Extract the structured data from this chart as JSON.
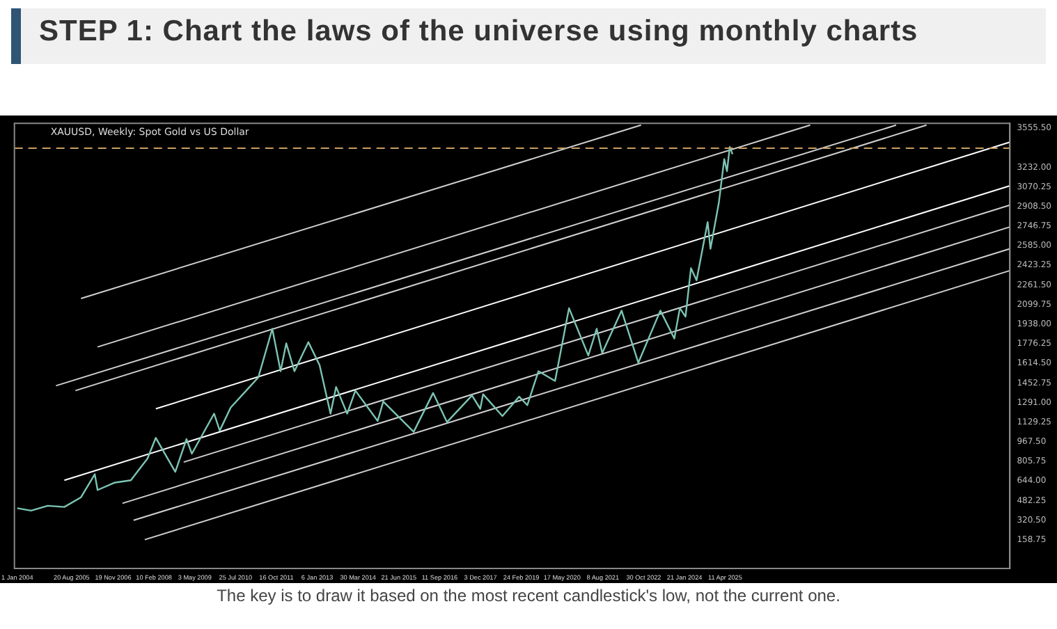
{
  "chart_data": {
    "type": "line",
    "title": "STEP 1: Chart the laws of the universe using monthly charts",
    "subtitle": "XAUUSD, Weekly: Spot Gold vs US Dollar",
    "annotations": [
      "The key is to draw it based on the most recent candlestick's low, not the current one."
    ],
    "xlim": [
      "2003-12-01",
      "2033-11-01"
    ],
    "xticks": [
      {
        "value": "2004-01-01",
        "label": "1 Jan 2004"
      },
      {
        "value": "2005-08-20",
        "label": "20 Aug 2005"
      },
      {
        "value": "2006-11-19",
        "label": "19 Nov 2006"
      },
      {
        "value": "2008-02-10",
        "label": "10 Feb 2008"
      },
      {
        "value": "2009-05-03",
        "label": "3 May 2009"
      },
      {
        "value": "2010-07-25",
        "label": "25 Jul 2010"
      },
      {
        "value": "2011-10-16",
        "label": "16 Oct 2011"
      },
      {
        "value": "2013-01-06",
        "label": "6 Jan 2013"
      },
      {
        "value": "2014-03-30",
        "label": "30 Mar 2014"
      },
      {
        "value": "2015-06-21",
        "label": "21 Jun 2015"
      },
      {
        "value": "2016-09-11",
        "label": "11 Sep 2016"
      },
      {
        "value": "2017-12-03",
        "label": "3 Dec 2017"
      },
      {
        "value": "2019-02-24",
        "label": "24 Feb 2019"
      },
      {
        "value": "2020-05-17",
        "label": "17 May 2020"
      },
      {
        "value": "2021-08-08",
        "label": "8 Aug 2021"
      },
      {
        "value": "2022-10-30",
        "label": "30 Oct 2022"
      },
      {
        "value": "2024-01-21",
        "label": "21 Jan 2024"
      },
      {
        "value": "2025-04-11",
        "label": "11 Apr 2025"
      }
    ],
    "ylim": [
      -77,
      3595
    ],
    "yticks": [
      {
        "value": 158.75,
        "label": "158.75"
      },
      {
        "value": 320.5,
        "label": "320.50"
      },
      {
        "value": 482.25,
        "label": "482.25"
      },
      {
        "value": 644,
        "label": "644.00"
      },
      {
        "value": 805.75,
        "label": "805.75"
      },
      {
        "value": 967.5,
        "label": "967.50"
      },
      {
        "value": 1129.25,
        "label": "1129.25"
      },
      {
        "value": 1291,
        "label": "1291.00"
      },
      {
        "value": 1452.75,
        "label": "1452.75"
      },
      {
        "value": 1614.5,
        "label": "1614.50"
      },
      {
        "value": 1776.25,
        "label": "1776.25"
      },
      {
        "value": 1938,
        "label": "1938.00"
      },
      {
        "value": 2099.75,
        "label": "2099.75"
      },
      {
        "value": 2261.5,
        "label": "2261.50"
      },
      {
        "value": 2423.25,
        "label": "2423.25"
      },
      {
        "value": 2585,
        "label": "2585.00"
      },
      {
        "value": 2746.75,
        "label": "2746.75"
      },
      {
        "value": 2908.5,
        "label": "2908.50"
      },
      {
        "value": 3070.25,
        "label": "3070.25"
      },
      {
        "value": 3232,
        "label": "3232.00"
      },
      {
        "value": 3555.5,
        "label": "3555.50"
      }
    ],
    "grid": false,
    "legend": false,
    "ref_lines": [
      {
        "axis": "y",
        "value": 3390,
        "color": "#c8a060",
        "line_style": "dashed"
      }
    ],
    "series": [
      {
        "color": "#7cc4b4",
        "x": [
          "2004-01",
          "2004-06",
          "2004-12",
          "2005-06",
          "2005-12",
          "2006-05",
          "2006-06",
          "2006-12",
          "2007-06",
          "2007-12",
          "2008-03",
          "2008-10",
          "2009-02",
          "2009-04",
          "2009-12",
          "2010-02",
          "2010-06",
          "2010-12",
          "2011-04",
          "2011-09",
          "2011-12",
          "2012-02",
          "2012-05",
          "2012-10",
          "2013-02",
          "2013-06",
          "2013-08",
          "2013-12",
          "2014-03",
          "2014-11",
          "2015-01",
          "2015-12",
          "2016-07",
          "2016-12",
          "2017-09",
          "2017-12",
          "2018-01",
          "2018-08",
          "2019-02",
          "2019-05",
          "2019-09",
          "2020-03",
          "2020-08",
          "2021-03",
          "2021-06",
          "2021-08",
          "2022-03",
          "2022-09",
          "2023-05",
          "2023-10",
          "2023-12",
          "2024-02",
          "2024-04",
          "2024-06",
          "2024-10",
          "2024-11",
          "2025-02",
          "2025-04",
          "2025-05",
          "2025-06",
          "2025-07"
        ],
        "values": [
          420,
          400,
          440,
          430,
          510,
          700,
          570,
          630,
          650,
          830,
          1000,
          720,
          990,
          870,
          1200,
          1060,
          1250,
          1400,
          1500,
          1900,
          1550,
          1780,
          1550,
          1790,
          1600,
          1200,
          1420,
          1200,
          1390,
          1140,
          1300,
          1050,
          1370,
          1130,
          1350,
          1240,
          1360,
          1180,
          1340,
          1270,
          1550,
          1470,
          2070,
          1680,
          1900,
          1700,
          2050,
          1620,
          2050,
          1820,
          2070,
          2000,
          2400,
          2300,
          2780,
          2560,
          2940,
          3300,
          3200,
          3400,
          3340
        ]
      },
      {
        "color": "#d0d0d0",
        "x": [
          "2005-12",
          "2022-10"
        ],
        "values": [
          2150,
          3580
        ]
      },
      {
        "color": "#d0d0d0",
        "x": [
          "2005-03",
          "2030-06"
        ],
        "values": [
          1430,
          3580
        ]
      },
      {
        "color": "#d0d0d0",
        "x": [
          "2005-10",
          "2031-05"
        ],
        "values": [
          1390,
          3580
        ]
      },
      {
        "color": "#d0d0d0",
        "x": [
          "2006-06",
          "2027-11"
        ],
        "values": [
          1750,
          3580
        ]
      },
      {
        "color": "#ffffff",
        "x": [
          "2008-03",
          "2033-11"
        ],
        "values": [
          1240,
          3440
        ]
      },
      {
        "color": "#ffffff",
        "x": [
          "2005-06",
          "2033-11"
        ],
        "values": [
          650,
          3080
        ]
      },
      {
        "color": "#d0d0d0",
        "x": [
          "2009-01",
          "2033-11"
        ],
        "values": [
          800,
          2920
        ]
      },
      {
        "color": "#d0d0d0",
        "x": [
          "2007-03",
          "2033-11"
        ],
        "values": [
          460,
          2740
        ]
      },
      {
        "color": "#d0d0d0",
        "x": [
          "2007-07",
          "2033-11"
        ],
        "values": [
          320,
          2560
        ]
      },
      {
        "color": "#d0d0d0",
        "x": [
          "2007-11",
          "2033-11"
        ],
        "values": [
          160,
          2380
        ]
      }
    ]
  }
}
